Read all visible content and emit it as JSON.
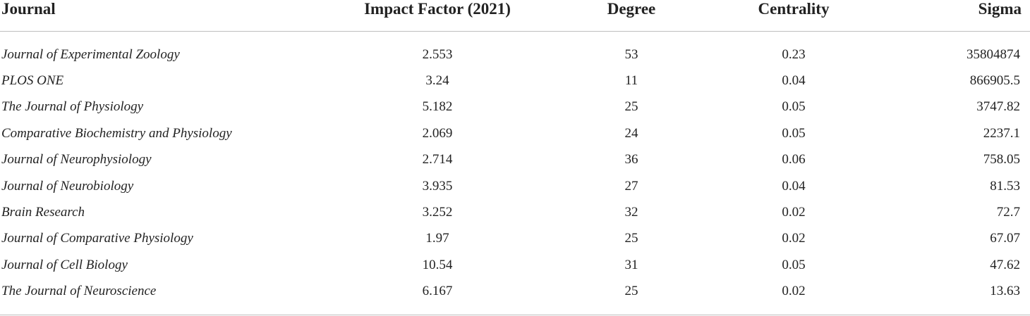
{
  "table": {
    "columns": [
      "Journal",
      "Impact Factor (2021)",
      "Degree",
      "Centrality",
      "Sigma"
    ],
    "rows": [
      [
        "Journal of Experimental Zoology",
        "2.553",
        "53",
        "0.23",
        "35804874"
      ],
      [
        "PLOS ONE",
        "3.24",
        "11",
        "0.04",
        "866905.5"
      ],
      [
        "The Journal of Physiology",
        "5.182",
        "25",
        "0.05",
        "3747.82"
      ],
      [
        "Comparative Biochemistry and Physiology",
        "2.069",
        "24",
        "0.05",
        "2237.1"
      ],
      [
        "Journal of Neurophysiology",
        "2.714",
        "36",
        "0.06",
        "758.05"
      ],
      [
        "Journal of Neurobiology",
        "3.935",
        "27",
        "0.04",
        "81.53"
      ],
      [
        "Brain Research",
        "3.252",
        "32",
        "0.02",
        "72.7"
      ],
      [
        "Journal of Comparative Physiology",
        "1.97",
        "25",
        "0.02",
        "67.07"
      ],
      [
        "Journal of Cell Biology",
        "10.54",
        "31",
        "0.05",
        "47.62"
      ],
      [
        "The Journal of Neuroscience",
        "6.167",
        "25",
        "0.02",
        "13.63"
      ]
    ]
  }
}
